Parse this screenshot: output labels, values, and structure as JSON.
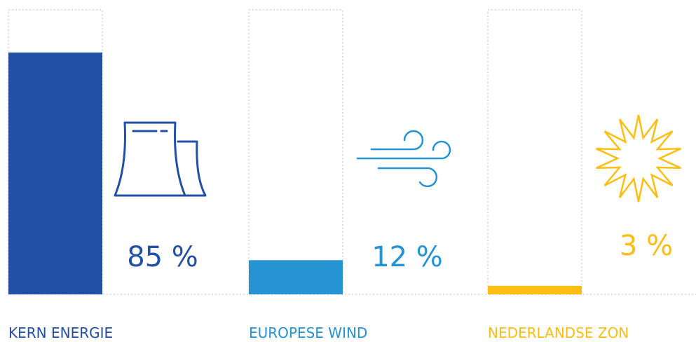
{
  "chart_data": {
    "type": "bar",
    "categories": [
      "KERN ENERGIE",
      "EUROPESE WIND",
      "NEDERLANDSE ZON"
    ],
    "values": [
      85,
      12,
      3
    ],
    "value_labels": [
      "85 %",
      "12 %",
      "3 %"
    ],
    "ylim": [
      0,
      100
    ],
    "grid": false,
    "colors": [
      "#2250a4",
      "#2592d1",
      "#fcbe13"
    ],
    "icons": [
      "cooling-tower-icon",
      "wind-icon",
      "sun-icon"
    ]
  }
}
